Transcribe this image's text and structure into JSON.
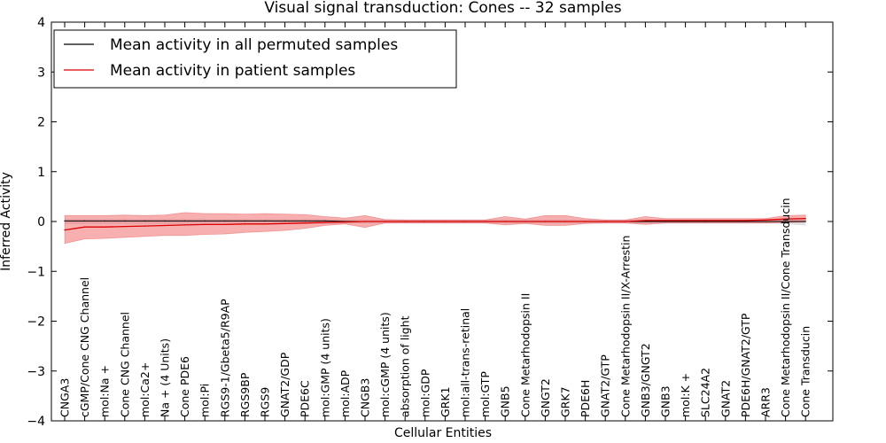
{
  "chart_data": {
    "type": "line",
    "title": "Visual signal transduction: Cones -- 32 samples",
    "xlabel": "Cellular Entities",
    "ylabel": "Inferred Activity",
    "ylim": [
      -4,
      4
    ],
    "yticks": [
      -4,
      -3,
      -2,
      -1,
      0,
      1,
      2,
      3,
      4
    ],
    "ytick_labels": [
      "−4",
      "−3",
      "−2",
      "−1",
      "0",
      "1",
      "2",
      "3",
      "4"
    ],
    "legend_position": "top-left",
    "categories": [
      "CNGA3",
      "cGMP/Cone CNG Channel",
      "mol:Na +",
      "Cone CNG Channel",
      "mol:Ca2+",
      "Na + (4 Units)",
      "Cone PDE6",
      "mol:Pi",
      "RGS9-1/Gbeta5/R9AP",
      "RGS9BP",
      "RGS9",
      "GNAT2/GDP",
      "PDE6C",
      "mol:GMP (4 units)",
      "mol:ADP",
      "CNGB3",
      "mol:cGMP (4 units)",
      "absorption of light",
      "mol:GDP",
      "GRK1",
      "mol:all-trans-retinal",
      "mol:GTP",
      "GNB5",
      "Cone Metarhodopsin II",
      "GNGT2",
      "GRK7",
      "PDE6H",
      "GNAT2/GTP",
      "Cone Metarhodopsin II/X-Arrestin",
      "GNB3/GNGT2",
      "GNB3",
      "mol:K +",
      "SLC24A2",
      "GNAT2",
      "PDE6H/GNAT2/GTP",
      "ARR3",
      "Cone Metarhodopsin II/Cone Transducin",
      "Cone Transducin"
    ],
    "series": [
      {
        "name": "Mean activity in all permuted samples",
        "color": "#000000",
        "band_color": "#c8c8d2",
        "values": [
          0.01,
          0.01,
          0.01,
          0.01,
          0.01,
          0.01,
          0.01,
          0.01,
          0.01,
          0.01,
          0.01,
          0.01,
          0.01,
          0.01,
          0.0,
          0.0,
          0.0,
          0.0,
          0.0,
          0.0,
          0.0,
          0.0,
          0.0,
          0.0,
          0.0,
          0.0,
          0.0,
          0.0,
          0.0,
          0.0,
          0.0,
          0.0,
          0.0,
          0.0,
          0.0,
          0.0,
          0.0,
          0.0
        ],
        "upper": [
          0.05,
          0.05,
          0.05,
          0.05,
          0.05,
          0.05,
          0.05,
          0.05,
          0.05,
          0.05,
          0.05,
          0.05,
          0.05,
          0.05,
          0.04,
          0.04,
          0.04,
          0.04,
          0.04,
          0.04,
          0.04,
          0.04,
          0.04,
          0.04,
          0.04,
          0.04,
          0.04,
          0.04,
          0.04,
          0.04,
          0.04,
          0.04,
          0.04,
          0.04,
          0.04,
          0.04,
          0.05,
          0.05
        ],
        "lower": [
          -0.05,
          -0.05,
          -0.05,
          -0.05,
          -0.05,
          -0.05,
          -0.05,
          -0.05,
          -0.05,
          -0.05,
          -0.05,
          -0.05,
          -0.05,
          -0.05,
          -0.04,
          -0.04,
          -0.04,
          -0.04,
          -0.04,
          -0.04,
          -0.04,
          -0.04,
          -0.04,
          -0.04,
          -0.04,
          -0.04,
          -0.04,
          -0.04,
          -0.04,
          -0.04,
          -0.04,
          -0.04,
          -0.04,
          -0.04,
          -0.04,
          -0.04,
          -0.05,
          -0.08
        ]
      },
      {
        "name": "Mean activity in patient samples",
        "color": "#dd0000",
        "band_color": "#f06060",
        "values": [
          -0.17,
          -0.11,
          -0.11,
          -0.1,
          -0.09,
          -0.08,
          -0.07,
          -0.06,
          -0.06,
          -0.05,
          -0.05,
          -0.04,
          -0.03,
          -0.02,
          -0.01,
          0.0,
          0.0,
          0.0,
          0.0,
          0.0,
          0.0,
          0.0,
          0.0,
          0.0,
          0.0,
          0.0,
          0.0,
          0.0,
          0.0,
          0.02,
          0.02,
          0.02,
          0.02,
          0.02,
          0.02,
          0.03,
          0.05,
          0.06
        ],
        "upper": [
          0.12,
          0.12,
          0.12,
          0.13,
          0.12,
          0.13,
          0.18,
          0.16,
          0.16,
          0.15,
          0.16,
          0.15,
          0.14,
          0.1,
          0.07,
          0.12,
          0.04,
          0.03,
          0.03,
          0.03,
          0.03,
          0.03,
          0.1,
          0.05,
          0.12,
          0.12,
          0.06,
          0.03,
          0.03,
          0.1,
          0.06,
          0.06,
          0.06,
          0.06,
          0.06,
          0.06,
          0.12,
          0.13
        ],
        "lower": [
          -0.44,
          -0.35,
          -0.34,
          -0.32,
          -0.3,
          -0.28,
          -0.28,
          -0.26,
          -0.25,
          -0.22,
          -0.2,
          -0.18,
          -0.14,
          -0.08,
          -0.05,
          -0.12,
          -0.03,
          -0.03,
          -0.03,
          -0.03,
          -0.03,
          -0.03,
          -0.07,
          -0.04,
          -0.08,
          -0.08,
          -0.04,
          -0.03,
          -0.03,
          -0.06,
          -0.03,
          -0.03,
          -0.03,
          -0.03,
          -0.03,
          -0.03,
          -0.02,
          -0.01
        ]
      }
    ]
  }
}
